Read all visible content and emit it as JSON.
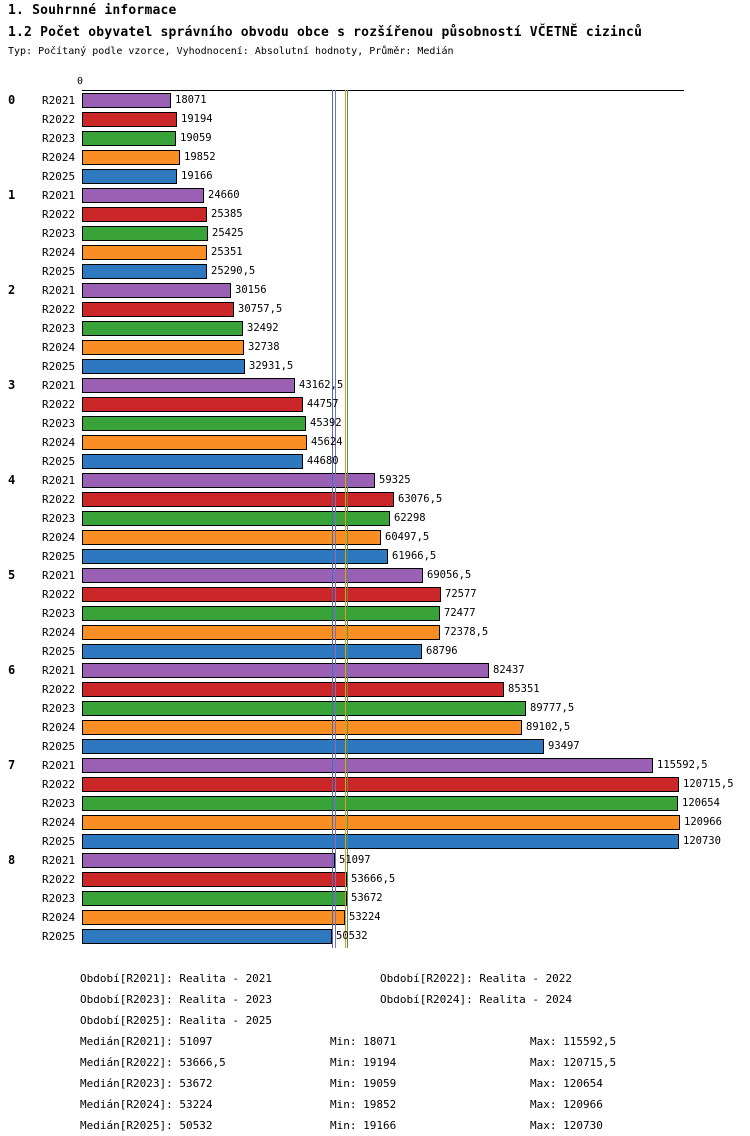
{
  "header": {
    "title": "1. Souhrnné informace",
    "subtitle": "1.2 Počet obyvatel správního obvodu obce s rozšířenou působností VČETNĚ cizinců",
    "meta": "Typ: Počítaný podle vzorce, Vyhodnocení: Absolutní hodnoty, Průměr: Medián"
  },
  "chart_data": {
    "type": "bar",
    "orientation": "horizontal",
    "grid": false,
    "axis": {
      "zero_label": "0",
      "xlim": [
        0,
        121800
      ]
    },
    "series": [
      {
        "name": "R2021",
        "color": "#9A60B4",
        "median": "51097"
      },
      {
        "name": "R2022",
        "color": "#CB2628",
        "median": "53666,5"
      },
      {
        "name": "R2023",
        "color": "#39A339",
        "median": "53672"
      },
      {
        "name": "R2024",
        "color": "#F98E25",
        "median": "53224"
      },
      {
        "name": "R2025",
        "color": "#2D78BE",
        "median": "50532"
      }
    ],
    "groups": [
      {
        "label": "0",
        "values": [
          "18071",
          "19194",
          "19059",
          "19852",
          "19166"
        ]
      },
      {
        "label": "1",
        "values": [
          "24660",
          "25385",
          "25425",
          "25351",
          "25290,5"
        ]
      },
      {
        "label": "2",
        "values": [
          "30156",
          "30757,5",
          "32492",
          "32738",
          "32931,5"
        ]
      },
      {
        "label": "3",
        "values": [
          "43162,5",
          "44757",
          "45392",
          "45624",
          "44680"
        ]
      },
      {
        "label": "4",
        "values": [
          "59325",
          "63076,5",
          "62298",
          "60497,5",
          "61966,5"
        ]
      },
      {
        "label": "5",
        "values": [
          "69056,5",
          "72577",
          "72477",
          "72378,5",
          "68796"
        ]
      },
      {
        "label": "6",
        "values": [
          "82437",
          "85351",
          "89777,5",
          "89102,5",
          "93497"
        ]
      },
      {
        "label": "7",
        "values": [
          "115592,5",
          "120715,5",
          "120654",
          "120966",
          "120730"
        ]
      },
      {
        "label": "8",
        "values": [
          "51097",
          "53666,5",
          "53672",
          "53224",
          "50532"
        ]
      }
    ]
  },
  "legend": {
    "periods": [
      "Období[R2021]: Realita - 2021",
      "Období[R2022]: Realita - 2022",
      "Období[R2023]: Realita - 2023",
      "Období[R2024]: Realita - 2024",
      "Období[R2025]: Realita - 2025"
    ],
    "stats": [
      {
        "median": "Medián[R2021]: 51097",
        "min": "Min: 18071",
        "max": "Max: 115592,5"
      },
      {
        "median": "Medián[R2022]: 53666,5",
        "min": "Min: 19194",
        "max": "Max: 120715,5"
      },
      {
        "median": "Medián[R2023]: 53672",
        "min": "Min: 19059",
        "max": "Max: 120654"
      },
      {
        "median": "Medián[R2024]: 53224",
        "min": "Min: 19852",
        "max": "Max: 120966"
      },
      {
        "median": "Medián[R2025]: 50532",
        "min": "Min: 19166",
        "max": "Max: 120730"
      }
    ]
  }
}
